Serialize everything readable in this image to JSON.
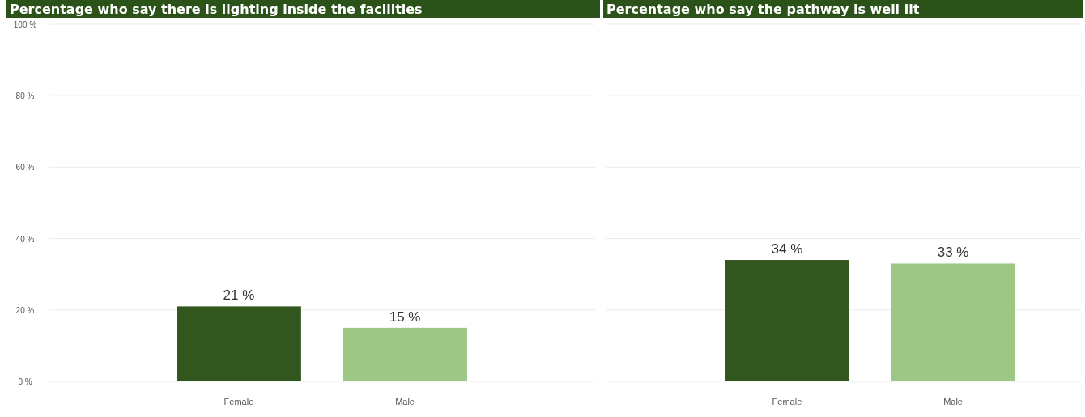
{
  "chart_data": [
    {
      "type": "bar",
      "title": "Percentage who say there is lighting inside the facilities",
      "categories": [
        "Female",
        "Male"
      ],
      "values": [
        21,
        15
      ],
      "colors": [
        "#32561e",
        "#9cc784"
      ],
      "value_labels": [
        "21 %",
        "15 %"
      ],
      "ylim": [
        0,
        100
      ],
      "yticks": [
        {
          "value": 0,
          "label": "0 %"
        },
        {
          "value": 20,
          "label": "20 %"
        },
        {
          "value": 40,
          "label": "40 %"
        },
        {
          "value": 60,
          "label": "60 %"
        },
        {
          "value": 80,
          "label": "80 %"
        },
        {
          "value": 100,
          "label": "100 %"
        }
      ],
      "grid": "y"
    },
    {
      "type": "bar",
      "title": "Percentage who say the pathway is well lit",
      "categories": [
        "Female",
        "Male"
      ],
      "values": [
        34,
        33
      ],
      "colors": [
        "#32561e",
        "#9cc784"
      ],
      "value_labels": [
        "34 %",
        "33 %"
      ],
      "ylim": [
        0,
        100
      ],
      "yticks": [
        {
          "value": 0,
          "label": null
        },
        {
          "value": 20,
          "label": null
        },
        {
          "value": 40,
          "label": null
        },
        {
          "value": 60,
          "label": null
        },
        {
          "value": 80,
          "label": null
        },
        {
          "value": 100,
          "label": null
        }
      ],
      "grid": "y",
      "tick_labels": "x"
    }
  ]
}
